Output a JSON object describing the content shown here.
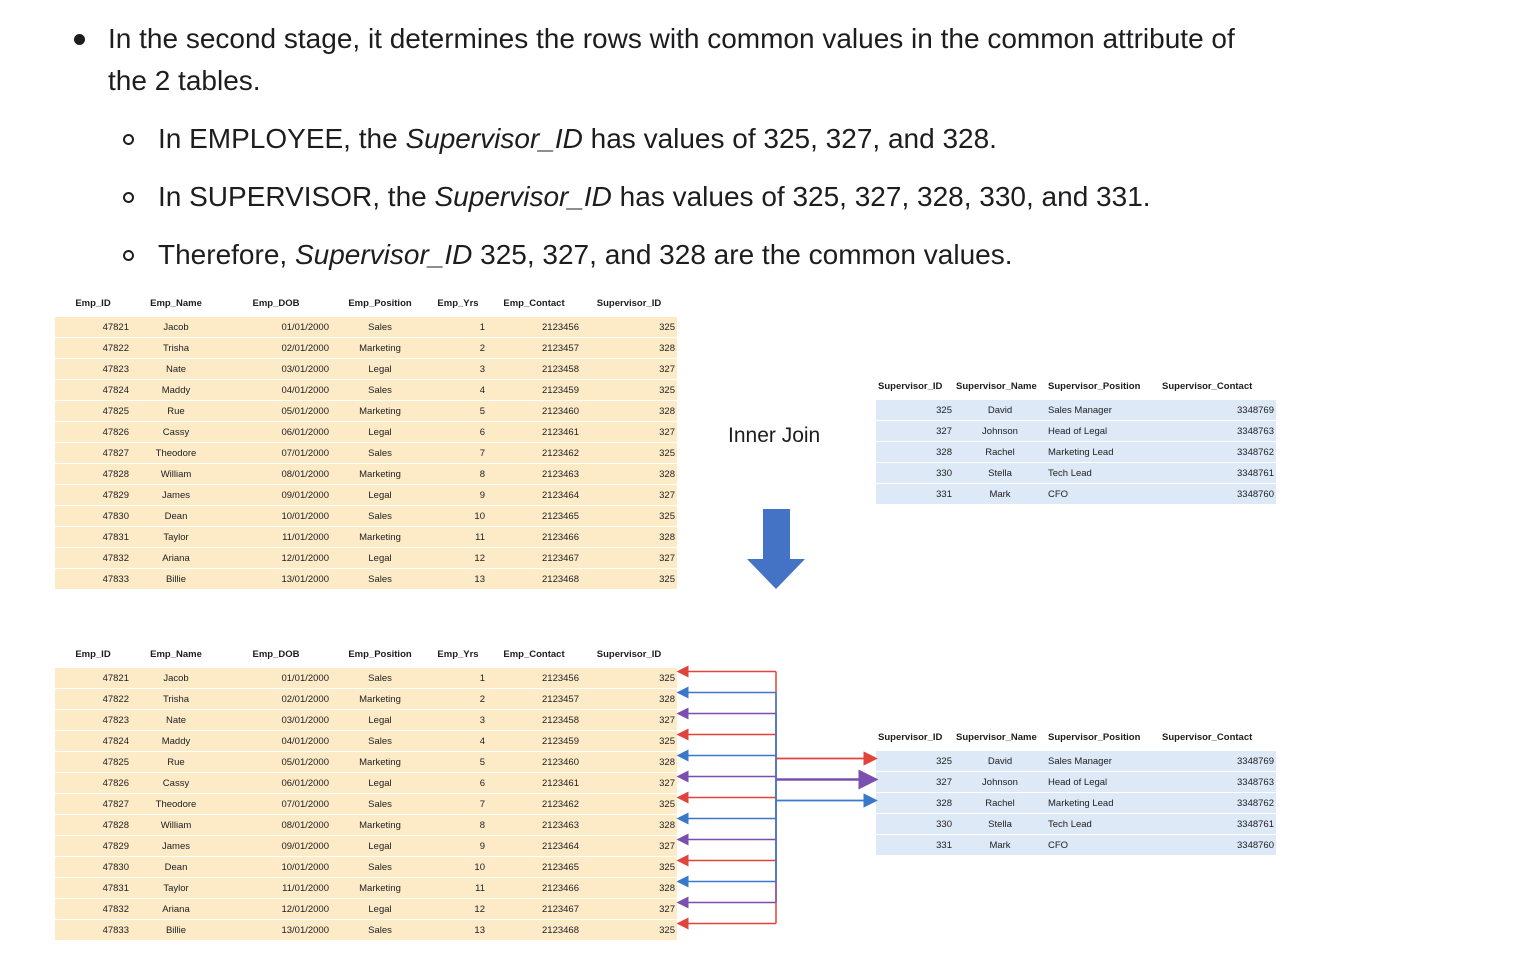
{
  "text": {
    "bullet_main": "In the second stage, it determines the rows with common values in the common attribute of the 2 tables.",
    "sub1_pre": "In EMPLOYEE, the ",
    "sub1_em": "Supervisor_ID",
    "sub1_post": " has values of 325, 327, and 328.",
    "sub2_pre": "In SUPERVISOR, the ",
    "sub2_em": "Supervisor_ID",
    "sub2_post": " has values of 325, 327, 328, 330, and 331.",
    "sub3_pre": "Therefore, ",
    "sub3_em": "Supervisor_ID",
    "sub3_post": " 325, 327, and 328 are the common values."
  },
  "inner_join_label": "Inner Join",
  "employee": {
    "headers": [
      "Emp_ID",
      "Emp_Name",
      "Emp_DOB",
      "Emp_Position",
      "Emp_Yrs",
      "Emp_Contact",
      "Supervisor_ID"
    ],
    "rows": [
      [
        "47821",
        "Jacob",
        "01/01/2000",
        "Sales",
        "1",
        "2123456",
        "325"
      ],
      [
        "47822",
        "Trisha",
        "02/01/2000",
        "Marketing",
        "2",
        "2123457",
        "328"
      ],
      [
        "47823",
        "Nate",
        "03/01/2000",
        "Legal",
        "3",
        "2123458",
        "327"
      ],
      [
        "47824",
        "Maddy",
        "04/01/2000",
        "Sales",
        "4",
        "2123459",
        "325"
      ],
      [
        "47825",
        "Rue",
        "05/01/2000",
        "Marketing",
        "5",
        "2123460",
        "328"
      ],
      [
        "47826",
        "Cassy",
        "06/01/2000",
        "Legal",
        "6",
        "2123461",
        "327"
      ],
      [
        "47827",
        "Theodore",
        "07/01/2000",
        "Sales",
        "7",
        "2123462",
        "325"
      ],
      [
        "47828",
        "William",
        "08/01/2000",
        "Marketing",
        "8",
        "2123463",
        "328"
      ],
      [
        "47829",
        "James",
        "09/01/2000",
        "Legal",
        "9",
        "2123464",
        "327"
      ],
      [
        "47830",
        "Dean",
        "10/01/2000",
        "Sales",
        "10",
        "2123465",
        "325"
      ],
      [
        "47831",
        "Taylor",
        "11/01/2000",
        "Marketing",
        "11",
        "2123466",
        "328"
      ],
      [
        "47832",
        "Ariana",
        "12/01/2000",
        "Legal",
        "12",
        "2123467",
        "327"
      ],
      [
        "47833",
        "Billie",
        "13/01/2000",
        "Sales",
        "13",
        "2123468",
        "325"
      ]
    ]
  },
  "supervisor": {
    "headers": [
      "Supervisor_ID",
      "Supervisor_Name",
      "Supervisor_Position",
      "Supervisor_Contact"
    ],
    "rows": [
      [
        "325",
        "David",
        "Sales Manager",
        "3348769"
      ],
      [
        "327",
        "Johnson",
        "Head of Legal",
        "3348763"
      ],
      [
        "328",
        "Rachel",
        "Marketing Lead",
        "3348762"
      ],
      [
        "330",
        "Stella",
        "Tech Lead",
        "3348761"
      ],
      [
        "331",
        "Mark",
        "CFO",
        "3348760"
      ]
    ]
  },
  "colors": {
    "employee_fill": "#fdebc8",
    "supervisor_fill": "#dde9f6",
    "arrow_325": "#e0443c",
    "arrow_327": "#7b4fb0",
    "arrow_328": "#3a78c9",
    "down_arrow": "#4472c4"
  }
}
